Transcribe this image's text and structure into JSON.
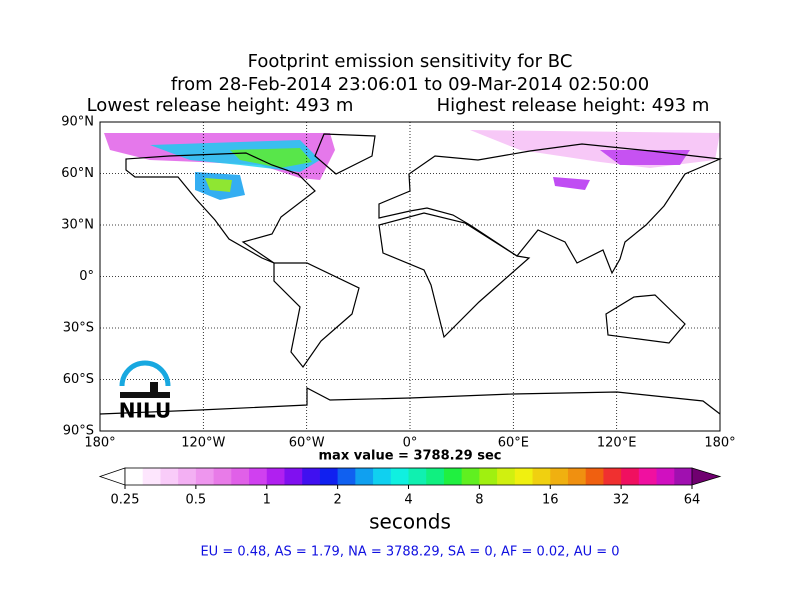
{
  "chart_data": {
    "type": "map",
    "title_lines": [
      "Footprint emission sensitivity for BC",
      "from 28-Feb-2014 23:06:01 to 09-Mar-2014 02:50:00"
    ],
    "release_heights": [
      "Lowest release height: 493 m",
      "Highest release height: 493 m"
    ],
    "xlim": [
      -180,
      180
    ],
    "ylim": [
      -90,
      90
    ],
    "xticks": [
      {
        "value": -180,
        "label": "180°"
      },
      {
        "value": -120,
        "label": "120°W"
      },
      {
        "value": -60,
        "label": "60°W"
      },
      {
        "value": 0,
        "label": "0°"
      },
      {
        "value": 60,
        "label": "60°E"
      },
      {
        "value": 120,
        "label": "120°E"
      },
      {
        "value": 180,
        "label": "180°"
      }
    ],
    "yticks": [
      {
        "value": 90,
        "label": "90°N"
      },
      {
        "value": 60,
        "label": "60°N"
      },
      {
        "value": 30,
        "label": "30°N"
      },
      {
        "value": 0,
        "label": "0°"
      },
      {
        "value": -30,
        "label": "30°S"
      },
      {
        "value": -60,
        "label": "60°S"
      },
      {
        "value": -90,
        "label": "90°S"
      }
    ],
    "grid": true,
    "logo": "NILU",
    "max_value_text": "max value = 3788.29 sec",
    "colorbar": {
      "scale": "log",
      "lim": [
        0.25,
        64
      ],
      "ticks": [
        0.25,
        0.5,
        1,
        2,
        4,
        8,
        16,
        32,
        64
      ],
      "label": "seconds",
      "colors": [
        "#ffffff",
        "#fde6fd",
        "#f9ccf9",
        "#f3b0f3",
        "#ee96ee",
        "#e87be8",
        "#e060e8",
        "#d040f0",
        "#b020f0",
        "#8010f0",
        "#4010f0",
        "#1020f0",
        "#1060f0",
        "#10a0f0",
        "#10d0f0",
        "#10f0e0",
        "#10f0b0",
        "#10f080",
        "#20f040",
        "#60f020",
        "#a0f010",
        "#d0f010",
        "#f0f010",
        "#f0d010",
        "#f0b010",
        "#f09010",
        "#f06010",
        "#f03030",
        "#f01060",
        "#f010a0",
        "#d010c0",
        "#a010b0"
      ],
      "under_color": "#ffffff",
      "over_color": "#700070"
    },
    "regional_summary": "EU = 0.48,  AS = 1.79,  NA = 3788.29,  SA = 0,  AF = 0.02,  AU = 0",
    "summary_color": "#1010e0"
  }
}
